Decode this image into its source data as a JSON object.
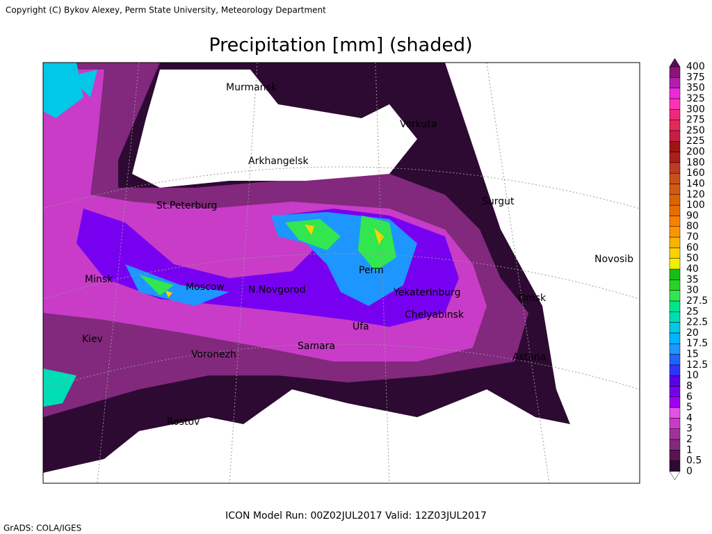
{
  "header": {
    "copyright": "Copyright (C) Bykov Alexey, Perm State University, Meteorology Department",
    "title": "Precipitation [mm] (shaded)"
  },
  "map": {
    "cities": [
      "Murmansk",
      "Arkhangelsk",
      "St.Peterburg",
      "Vorkuta",
      "Surgut",
      "Novosib",
      "Minsk",
      "Moscow",
      "N.Novgorod",
      "Perm",
      "Yekaterinburg",
      "Omsk",
      "Chelyabinsk",
      "Ufa",
      "Samara",
      "Kiev",
      "Voronezh",
      "Astana",
      "Rostov"
    ]
  },
  "colorbar": {
    "levels": [
      0,
      0.5,
      1,
      2,
      3,
      4,
      5,
      6,
      8,
      10,
      12.5,
      15,
      17.5,
      20,
      22.5,
      25,
      27.5,
      30,
      35,
      40,
      50,
      60,
      70,
      80,
      90,
      100,
      120,
      140,
      160,
      180,
      200,
      225,
      250,
      275,
      300,
      325,
      350,
      375,
      400
    ],
    "colors": [
      "#2d0a32",
      "#5a1450",
      "#82287d",
      "#a0329b",
      "#c83cc8",
      "#e650e6",
      "#a000f0",
      "#7800f0",
      "#5a00e6",
      "#3232ff",
      "#1e64ff",
      "#1e96ff",
      "#00b4ff",
      "#00c8e6",
      "#00dcb4",
      "#00e68c",
      "#32e650",
      "#28d228",
      "#14be14",
      "#f0f000",
      "#fad200",
      "#fab400",
      "#fa9600",
      "#fa8200",
      "#e66e00",
      "#dc6400",
      "#d25a14",
      "#c8501e",
      "#be3c1e",
      "#aa1e1e",
      "#a01414",
      "#c81e46",
      "#e6285a",
      "#f0287d",
      "#ff32b4",
      "#f028dc",
      "#b41eaa",
      "#8c1478"
    ]
  },
  "footer": {
    "run": "ICON Model Run: 00Z02JUL2017 Valid: 12Z03JUL2017",
    "credit": "GrADS: COLA/IGES"
  }
}
